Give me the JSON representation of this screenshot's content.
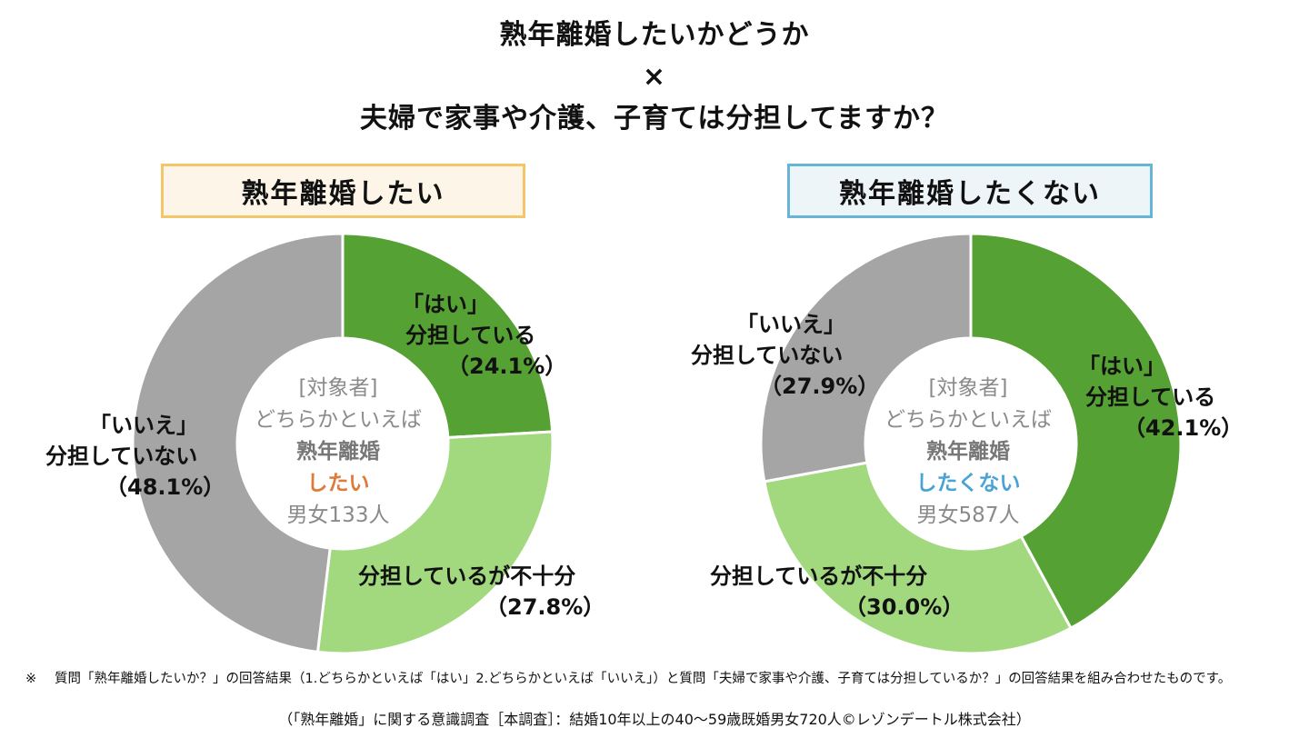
{
  "title": {
    "line1": "熟年離婚したいかどうか",
    "line2": "×",
    "line3": "夫婦で家事や介護、子育ては分担してますか？"
  },
  "colors": {
    "yes": "#56a133",
    "insufficient": "#a2d97f",
    "no": "#a5a5a5"
  },
  "chart_data": [
    {
      "type": "pie",
      "group_label": "熟年離婚したい",
      "center": {
        "line1": "[対象者]",
        "line2": "どちらかといえば",
        "line3": "熟年離婚",
        "line4": "したい",
        "line5": "男女133人"
      },
      "slices": [
        {
          "name_line1": "「はい」",
          "name_line2": "分担している",
          "value": 24.1,
          "value_label": "（24.1%）",
          "color": "#56a133"
        },
        {
          "name_line1": "",
          "name_line2": "分担しているが不十分",
          "value": 27.8,
          "value_label": "（27.8%）",
          "color": "#a2d97f"
        },
        {
          "name_line1": "「いいえ」",
          "name_line2": "分担していない",
          "value": 48.1,
          "value_label": "（48.1%）",
          "color": "#a5a5a5"
        }
      ]
    },
    {
      "type": "pie",
      "group_label": "熟年離婚したくない",
      "center": {
        "line1": "[対象者]",
        "line2": "どちらかといえば",
        "line3": "熟年離婚",
        "line4": "したくない",
        "line5": "男女587人"
      },
      "slices": [
        {
          "name_line1": "「はい」",
          "name_line2": "分担している",
          "value": 42.1,
          "value_label": "（42.1%）",
          "color": "#56a133"
        },
        {
          "name_line1": "",
          "name_line2": "分担しているが不十分",
          "value": 30.0,
          "value_label": "（30.0%）",
          "color": "#a2d97f"
        },
        {
          "name_line1": "「いいえ」",
          "name_line2": "分担していない",
          "value": 27.9,
          "value_label": "（27.9%）",
          "color": "#a5a5a5"
        }
      ]
    }
  ],
  "footnote": {
    "mark": "※",
    "text": "質問「熟年離婚したいか？」の回答結果（1.どちらかといえば「はい」2.どちらかといえば「いいえ」）と質問「夫婦で家事や介護、子育ては分担しているか？」の回答結果を組み合わせたものです。"
  },
  "source": "（「熟年離婚」に関する意識調査［本調査］：結婚10年以上の40～59歳既婚男女720人©レゾンデートル株式会社）"
}
